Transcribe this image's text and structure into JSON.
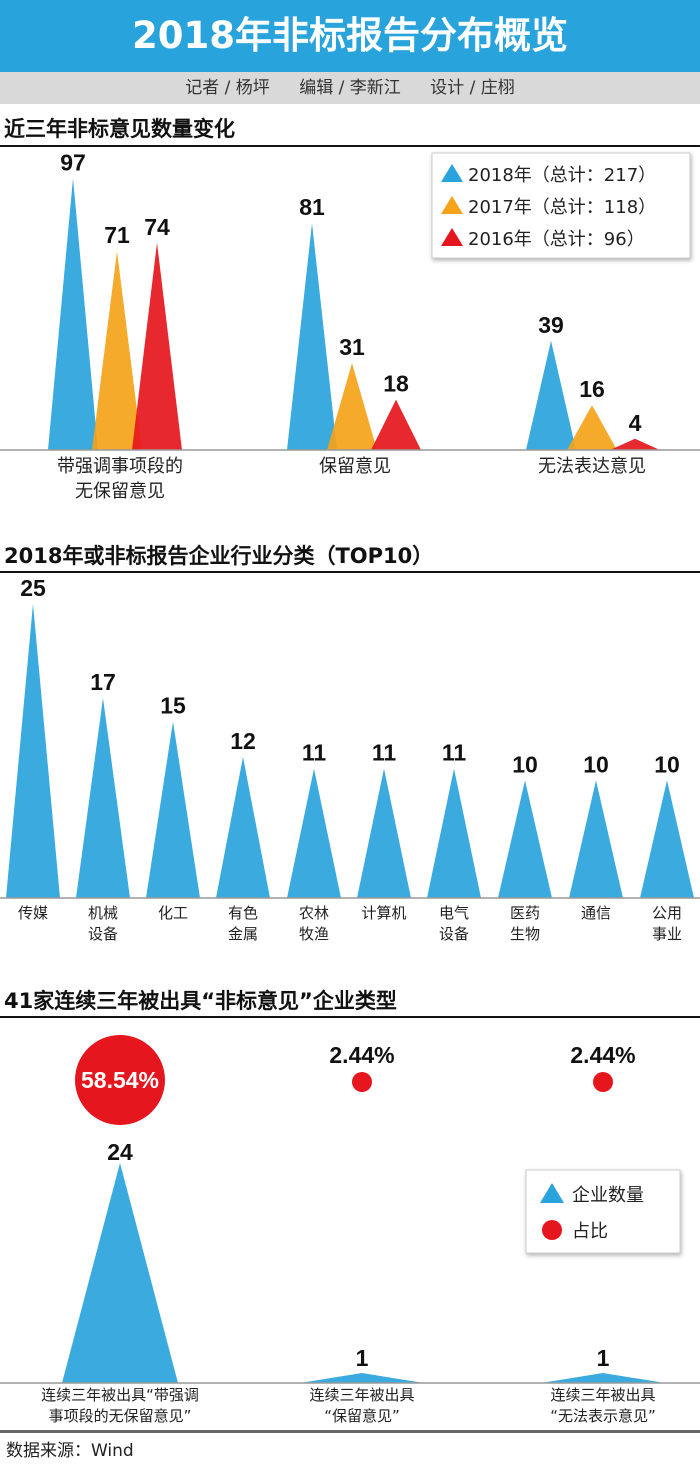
{
  "header": {
    "title": "2018年非标报告分布概览"
  },
  "credits": [
    "记者 / 杨坪",
    "编辑 / 李新江",
    "设计 / 庄栩"
  ],
  "source": "数据来源：Wind",
  "colors": {
    "blue": "#29a3dc",
    "orange": "#f5a31a",
    "red": "#e5161d"
  },
  "chart_data": [
    {
      "type": "triangle-bar",
      "title": "近三年非标意见数量变化",
      "categories": [
        [
          "带强调事项段的",
          "无保留意见"
        ],
        [
          "保留意见"
        ],
        [
          "无法表达意见"
        ]
      ],
      "series": [
        {
          "name": "2018年（总计：217）",
          "values": [
            97,
            81,
            39
          ],
          "color": "blue"
        },
        {
          "name": "2017年（总计：118）",
          "values": [
            71,
            31,
            16
          ],
          "color": "orange"
        },
        {
          "name": "2016年（总计：96）",
          "values": [
            74,
            18,
            4
          ],
          "color": "red"
        }
      ],
      "legend": "top-right"
    },
    {
      "type": "triangle-bar",
      "title": "2018年或非标报告企业行业分类（TOP10）",
      "categories": [
        [
          "传媒"
        ],
        [
          "机械",
          "设备"
        ],
        [
          "化工"
        ],
        [
          "有色",
          "金属"
        ],
        [
          "农林",
          "牧渔"
        ],
        [
          "计算机"
        ],
        [
          "电气",
          "设备"
        ],
        [
          "医药",
          "生物"
        ],
        [
          "通信"
        ],
        [
          "公用",
          "事业"
        ]
      ],
      "values": [
        25,
        17,
        15,
        12,
        11,
        11,
        11,
        10,
        10,
        10
      ]
    },
    {
      "type": "triangle-bar",
      "title": "41家连续三年被出具“非标意见”企业类型",
      "categories": [
        [
          "连续三年被出具“带强调",
          "事项段的无保留意见”"
        ],
        [
          "连续三年被出具",
          "“保留意见”"
        ],
        [
          "连续三年被出具",
          "“无法表示意见”"
        ]
      ],
      "values": [
        24,
        1,
        1
      ],
      "shares": [
        "58.54%",
        "2.44%",
        "2.44%"
      ],
      "legend_items": [
        "企业数量",
        "占比"
      ],
      "legend": "right"
    }
  ]
}
